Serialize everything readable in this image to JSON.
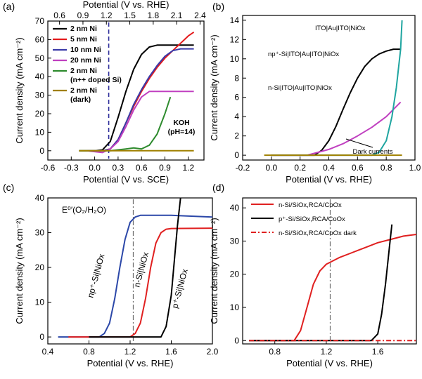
{
  "panel_labels": [
    "(a)",
    "(b)",
    "(c)",
    "(d)"
  ],
  "chart_data": [
    {
      "type": "line",
      "panel": "(a)",
      "xlabel": "Potential (V vs. SCE)",
      "x2label": "Potential (V vs. RHE)",
      "ylabel": "Current density (mA cm⁻²)",
      "xlim": [
        -0.6,
        1.4
      ],
      "x2lim": [
        0.45,
        2.45
      ],
      "ylim": [
        -5,
        70
      ],
      "xticks": [
        -0.6,
        -0.3,
        0.0,
        0.3,
        0.6,
        0.9,
        1.2
      ],
      "x2ticks": [
        0.6,
        0.9,
        1.2,
        1.5,
        1.8,
        2.1,
        2.4
      ],
      "yticks": [
        0,
        10,
        20,
        30,
        40,
        50,
        60,
        70
      ],
      "grid": false,
      "legend_position": "top-left",
      "vline_x": 0.18,
      "annotation": "KOH\n(pH=14)",
      "series": [
        {
          "name": "2 nm Ni",
          "color": "#000000",
          "x": [
            -0.2,
            0.0,
            0.1,
            0.2,
            0.3,
            0.4,
            0.5,
            0.6,
            0.7,
            0.8,
            0.9,
            1.0,
            1.27
          ],
          "y": [
            0,
            0,
            0.5,
            5,
            18,
            32,
            44,
            52,
            56,
            57,
            57,
            57,
            57
          ]
        },
        {
          "name": "5 nm Ni",
          "color": "#e41a1c",
          "x": [
            -0.1,
            0.1,
            0.2,
            0.3,
            0.4,
            0.5,
            0.6,
            0.7,
            0.8,
            0.9,
            1.0,
            1.1,
            1.2,
            1.27
          ],
          "y": [
            0,
            0,
            1,
            6,
            15,
            24,
            32,
            39,
            45,
            50,
            54,
            58,
            62,
            64
          ]
        },
        {
          "name": "10 nm Ni",
          "color": "#3a3aa8",
          "x": [
            -0.1,
            0.1,
            0.2,
            0.3,
            0.4,
            0.5,
            0.6,
            0.7,
            0.8,
            0.9,
            1.0,
            1.1,
            1.27
          ],
          "y": [
            0,
            0,
            1,
            6,
            15,
            25,
            33,
            40,
            46,
            51,
            54,
            55,
            55
          ]
        },
        {
          "name": "20 nm Ni",
          "color": "#c040c0",
          "x": [
            -0.1,
            0.1,
            0.2,
            0.3,
            0.4,
            0.5,
            0.6,
            0.7,
            0.8,
            1.0,
            1.27
          ],
          "y": [
            0,
            -1,
            1,
            5,
            13,
            22,
            29,
            32,
            32,
            32,
            32
          ]
        },
        {
          "name": "2 nm Ni\n(n++ doped Si)",
          "color": "#2e8b2e",
          "x": [
            -0.2,
            0.2,
            0.4,
            0.5,
            0.6,
            0.7,
            0.8,
            0.9,
            0.97
          ],
          "y": [
            0,
            0,
            1,
            1.5,
            1,
            3,
            9,
            20,
            29
          ]
        },
        {
          "name": "2 nm Ni\n(dark)",
          "color": "#a08000",
          "x": [
            -0.2,
            1.27
          ],
          "y": [
            0,
            0
          ]
        }
      ]
    },
    {
      "type": "line",
      "panel": "(b)",
      "xlabel": "Potential (V vs. RHE)",
      "ylabel": "Current density (mA cm⁻²)",
      "xlim": [
        -0.2,
        1.0
      ],
      "ylim": [
        -0.5,
        14.5
      ],
      "xticks": [
        -0.2,
        0.0,
        0.2,
        0.4,
        0.6,
        0.8,
        1.0
      ],
      "yticks": [
        0,
        2,
        4,
        6,
        8,
        10,
        12,
        14
      ],
      "grid": false,
      "annotations": [
        "ITO|Au|ITO|NiOx",
        "np⁺-Si|ITO|Au|ITO|NiOx",
        "n-Si|ITO|Au|ITO|NiOx",
        "Dark currents"
      ],
      "series": [
        {
          "color": "#000000",
          "x": [
            0.0,
            0.3,
            0.35,
            0.4,
            0.45,
            0.5,
            0.55,
            0.6,
            0.65,
            0.7,
            0.75,
            0.8,
            0.85,
            0.9
          ],
          "y": [
            0,
            0,
            0.5,
            1.5,
            3,
            4.8,
            6.5,
            8,
            9.2,
            10,
            10.5,
            10.8,
            11,
            11
          ]
        },
        {
          "color": "#c040c0",
          "x": [
            0.0,
            0.25,
            0.3,
            0.4,
            0.5,
            0.6,
            0.7,
            0.8,
            0.9
          ],
          "y": [
            0,
            0,
            0.2,
            0.6,
            1.2,
            2.0,
            2.9,
            4.0,
            5.5
          ]
        },
        {
          "color": "#1fa5a0",
          "x": [
            0.0,
            0.7,
            0.75,
            0.8,
            0.84,
            0.87,
            0.9,
            0.91
          ],
          "y": [
            0,
            0,
            0.3,
            1.5,
            4,
            7,
            11,
            14
          ]
        },
        {
          "color": "#a08000",
          "x": [
            -0.05,
            0.91
          ],
          "y": [
            0,
            0
          ]
        }
      ]
    },
    {
      "type": "line",
      "panel": "(c)",
      "xlabel": "Potential (V vs. RHE)",
      "ylabel": "Current density (mA cm⁻²)",
      "xlim": [
        0.4,
        2.0
      ],
      "ylim": [
        -2,
        40
      ],
      "xticks": [
        0.4,
        0.8,
        1.2,
        1.6,
        2.0
      ],
      "yticks": [
        0,
        10,
        20,
        30,
        40
      ],
      "grid": false,
      "vline_x": 1.23,
      "annotations": [
        "E⁰′(O₂/H₂O)",
        "np⁺-Si|NiOx",
        "n-Si|NiOx",
        "p⁺-Si|NiOx"
      ],
      "series": [
        {
          "color": "#2b47a8",
          "x": [
            0.5,
            0.9,
            0.95,
            1.0,
            1.05,
            1.1,
            1.15,
            1.2,
            1.25,
            1.3,
            1.4,
            1.6,
            2.0
          ],
          "y": [
            0,
            0,
            1,
            4,
            11,
            20,
            28,
            33,
            34.5,
            35,
            35,
            35,
            34.5
          ]
        },
        {
          "color": "#e02020",
          "x": [
            0.6,
            1.2,
            1.25,
            1.3,
            1.35,
            1.4,
            1.45,
            1.5,
            1.55,
            1.6,
            2.0
          ],
          "y": [
            0,
            0,
            1,
            4,
            11,
            20,
            27,
            30,
            31,
            31.2,
            31.3
          ]
        },
        {
          "color": "#000000",
          "x": [
            0.8,
            1.5,
            1.55,
            1.6,
            1.63,
            1.66,
            1.69
          ],
          "y": [
            0,
            0,
            3,
            12,
            22,
            32,
            40
          ]
        }
      ]
    },
    {
      "type": "line",
      "panel": "(d)",
      "xlabel": "Potential (V vs. RHE)",
      "ylabel": "Current density (mA cm⁻²)",
      "xlim": [
        0.55,
        1.9
      ],
      "ylim": [
        -1,
        43
      ],
      "xticks": [
        0.8,
        1.2,
        1.6
      ],
      "yticks": [
        0,
        10,
        20,
        30,
        40
      ],
      "grid": false,
      "vline_x": 1.23,
      "legend_position": "top-left",
      "series": [
        {
          "name": "n-Si/SiOx,RCA/CoOx",
          "color": "#e02020",
          "x": [
            0.6,
            0.95,
            1.0,
            1.05,
            1.1,
            1.15,
            1.2,
            1.3,
            1.4,
            1.5,
            1.6,
            1.7,
            1.8,
            1.9
          ],
          "y": [
            0,
            0,
            3,
            10,
            17,
            21,
            23,
            25,
            26.5,
            28,
            29.5,
            30.5,
            31.5,
            32
          ]
        },
        {
          "name": "p⁺-Si/SiOx,RCA/CoOx",
          "color": "#000000",
          "x": [
            0.6,
            1.55,
            1.6,
            1.63,
            1.66,
            1.69,
            1.71
          ],
          "y": [
            0,
            0,
            2,
            8,
            17,
            28,
            35
          ]
        },
        {
          "name": "n-Si/SiOx,RCA/CoOx dark",
          "color": "#e02020",
          "dash": true,
          "x": [
            0.6,
            1.9
          ],
          "y": [
            0,
            0
          ]
        }
      ]
    }
  ]
}
